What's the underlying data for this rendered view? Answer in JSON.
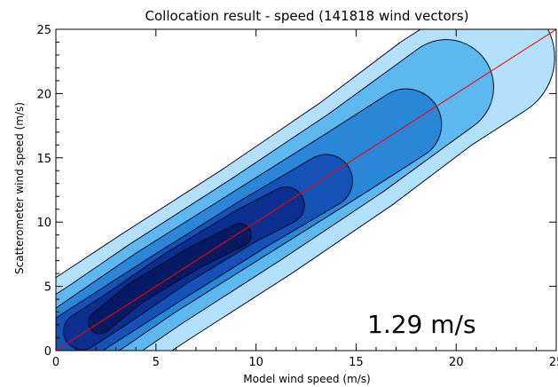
{
  "chart_data": {
    "type": "heatmap",
    "title": "Collocation result - speed (141818 wind vectors)",
    "xlabel": "Model wind speed (m/s)",
    "ylabel": "Scatterometer wind speed (m/s)",
    "xlim": [
      0,
      25
    ],
    "ylim": [
      0,
      25
    ],
    "x_ticks": [
      "0",
      "5",
      "10",
      "15",
      "20",
      "25"
    ],
    "y_ticks": [
      "0",
      "5",
      "10",
      "15",
      "20",
      "25"
    ],
    "grid": false,
    "annotation": "1.29 m/s",
    "reference_line": {
      "from": [
        0,
        0
      ],
      "to": [
        25,
        25
      ],
      "color": "#ff0000"
    },
    "density_levels": [
      {
        "level": 1,
        "color": "#b3e0fb",
        "ridge": [
          [
            0.6,
            0.5
          ],
          [
            1.5,
            1.4
          ],
          [
            5,
            5
          ],
          [
            10,
            10
          ],
          [
            15,
            15.3
          ],
          [
            19,
            20
          ],
          [
            21.8,
            22.8
          ]
        ],
        "half_width": 3.1
      },
      {
        "level": 2,
        "color": "#5cb8ee",
        "ridge": [
          [
            0.6,
            0.6
          ],
          [
            2,
            2
          ],
          [
            5,
            5.2
          ],
          [
            10,
            10.2
          ],
          [
            15,
            15.4
          ],
          [
            19.5,
            20.5
          ]
        ],
        "half_width": 2.35
      },
      {
        "level": 3,
        "color": "#2a86d6",
        "ridge": [
          [
            0.7,
            0.7
          ],
          [
            2,
            2.1
          ],
          [
            5,
            5.3
          ],
          [
            10,
            10.2
          ],
          [
            14.5,
            14.6
          ],
          [
            17.5,
            17.6
          ]
        ],
        "half_width": 1.75
      },
      {
        "level": 4,
        "color": "#1452b6",
        "ridge": [
          [
            0.9,
            1
          ],
          [
            2.5,
            2.6
          ],
          [
            5.5,
            5.6
          ],
          [
            10,
            10
          ],
          [
            13.5,
            13.2
          ]
        ],
        "half_width": 1.3
      },
      {
        "level": 5,
        "color": "#0b2f8f",
        "ridge": [
          [
            1.3,
            1.5
          ],
          [
            3,
            3.2
          ],
          [
            6,
            6.4
          ],
          [
            9.5,
            9.7
          ],
          [
            11.5,
            11.3
          ]
        ],
        "half_width": 0.9
      },
      {
        "level": 6,
        "color": "#061a63",
        "ridge": [
          [
            2.2,
            2.2
          ],
          [
            4,
            4.5
          ],
          [
            7,
            7.3
          ],
          [
            9.2,
            9.0
          ]
        ],
        "half_width": 0.55
      }
    ]
  }
}
